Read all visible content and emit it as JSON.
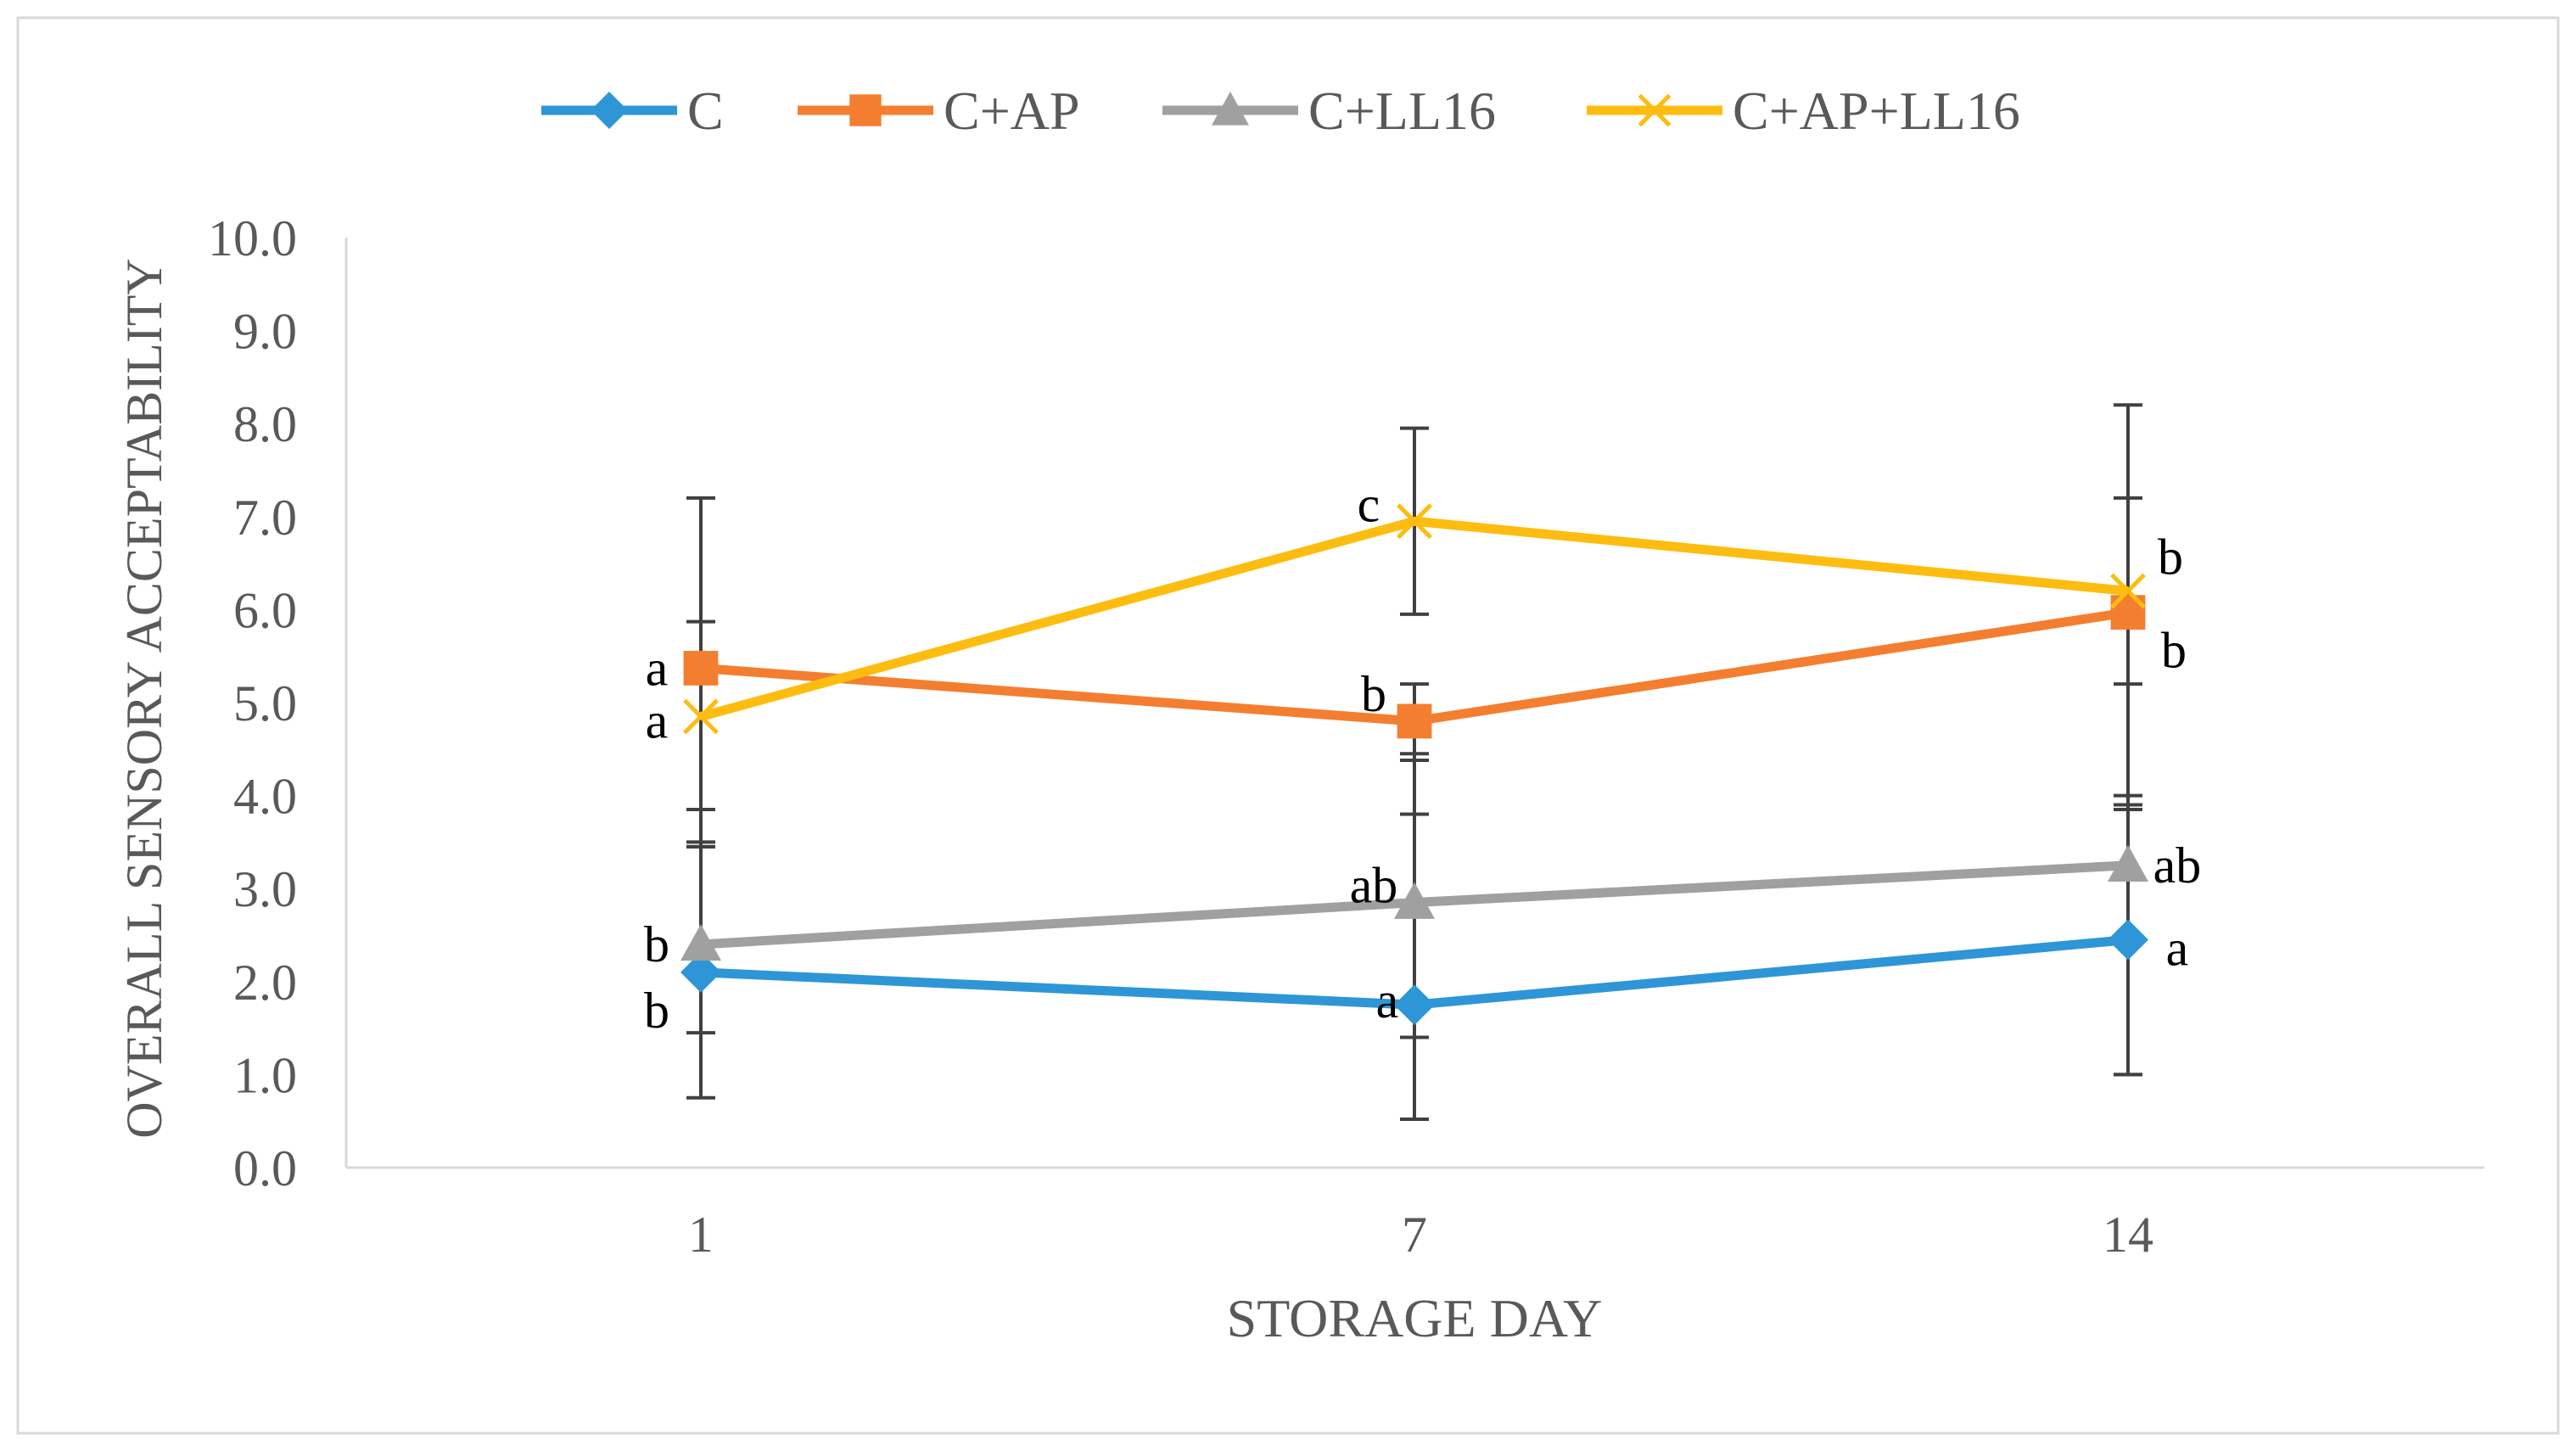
{
  "chart_data": {
    "type": "line",
    "title": "",
    "xlabel": "STORAGE DAY",
    "ylabel": "OVERALL SENSORY ACCEPTABILITY",
    "categories": [
      "1",
      "7",
      "14"
    ],
    "ylim": [
      0,
      10
    ],
    "yticks": [
      "0.0",
      "1.0",
      "2.0",
      "3.0",
      "4.0",
      "5.0",
      "6.0",
      "7.0",
      "8.0",
      "9.0",
      "10.0"
    ],
    "grid": false,
    "legend_position": "top",
    "series": [
      {
        "name": "C",
        "color": "#2e96d6",
        "marker": "diamond",
        "values": [
          2.1,
          1.75,
          2.45
        ],
        "errors": [
          [
            0.75,
            3.45
          ],
          [
            0.52,
            3.8
          ],
          [
            1.0,
            3.9
          ]
        ],
        "labels": [
          "b",
          "a",
          "a"
        ]
      },
      {
        "name": "C+AP",
        "color": "#f47e30",
        "marker": "square",
        "values": [
          5.37,
          4.8,
          5.97
        ],
        "errors": [
          [
            3.85,
            5.87
          ],
          [
            4.38,
            5.2
          ],
          [
            3.85,
            8.2
          ]
        ],
        "labels": [
          "a",
          "b",
          "b"
        ]
      },
      {
        "name": "C+LL16",
        "color": "#a0a0a0",
        "marker": "triangle",
        "values": [
          2.4,
          2.85,
          3.25
        ],
        "errors": [
          [
            1.45,
            3.5
          ],
          [
            1.4,
            4.45
          ],
          [
            1.0,
            4.0
          ]
        ],
        "labels": [
          "b",
          "ab",
          "ab"
        ]
      },
      {
        "name": "C+AP+LL16",
        "color": "#fdbd10",
        "marker": "x",
        "values": [
          4.85,
          6.95,
          6.2
        ],
        "errors": [
          [
            3.45,
            7.2
          ],
          [
            5.95,
            7.95
          ],
          [
            5.2,
            7.2
          ]
        ],
        "labels": [
          "a",
          "c",
          "b"
        ]
      }
    ]
  }
}
